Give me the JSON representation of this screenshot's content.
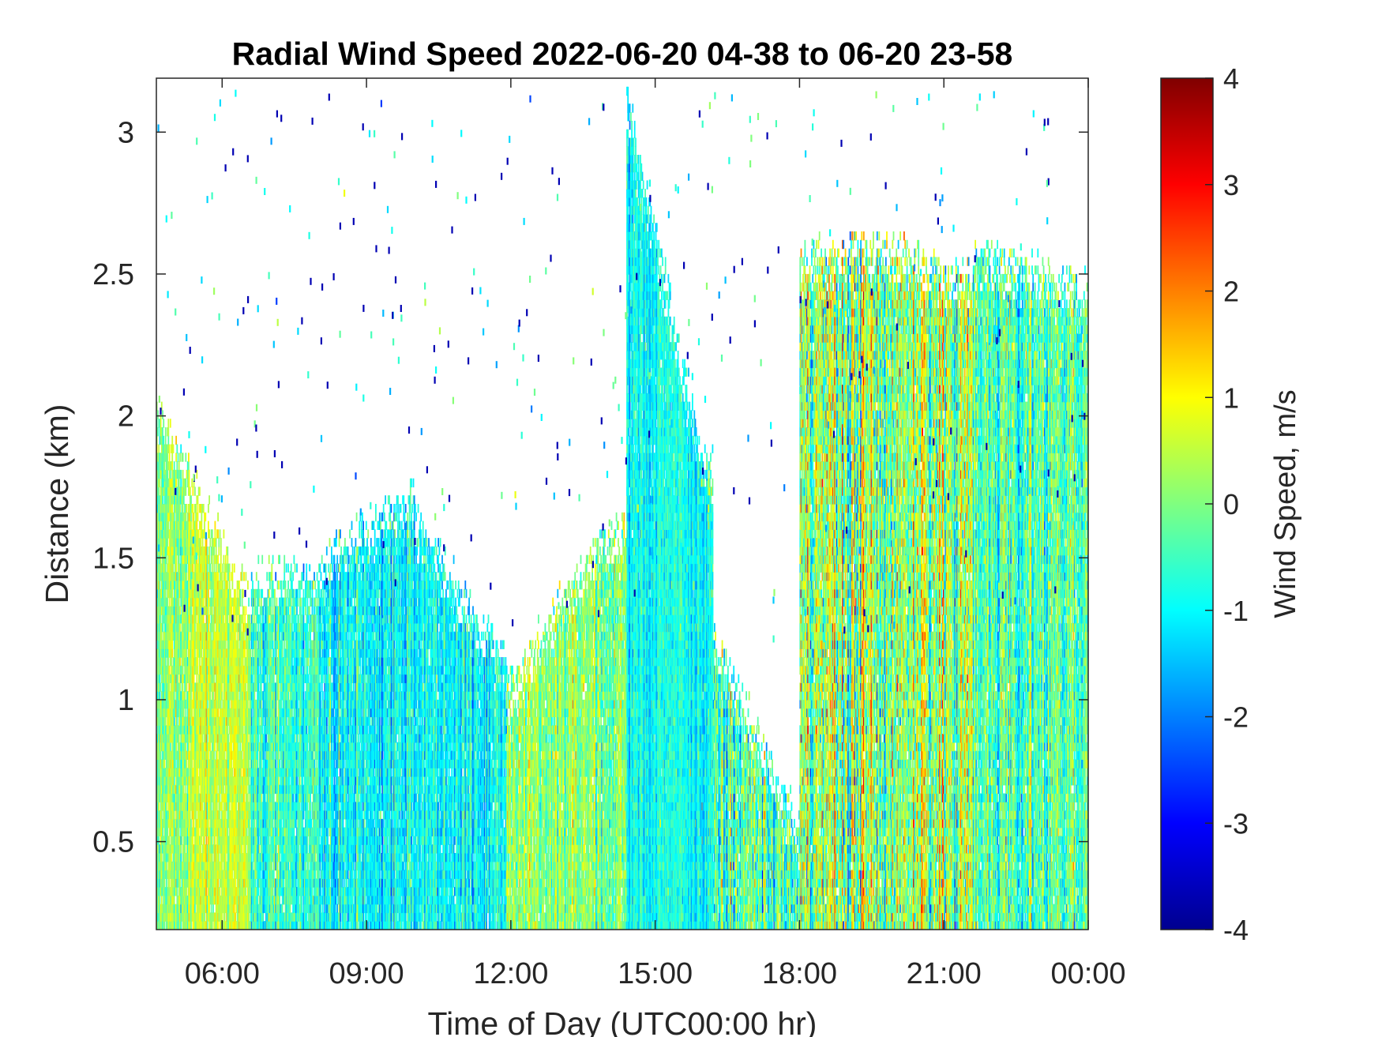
{
  "chart_data": {
    "type": "heatmap",
    "title": "Radial Wind Speed 2022-06-20 04-38 to 06-20 23-58",
    "xlabel": "Time of Day (UTC00:00 hr)",
    "ylabel": "Distance (km)",
    "colorbar_label": "Wind Speed, m/s",
    "xlim_hours": [
      4.633,
      24.0
    ],
    "ylim": [
      0.19,
      3.19
    ],
    "clim": [
      -4,
      4
    ],
    "colormap": "jet",
    "x_ticks": [
      {
        "value": 6,
        "label": "06:00"
      },
      {
        "value": 9,
        "label": "09:00"
      },
      {
        "value": 12,
        "label": "12:00"
      },
      {
        "value": 15,
        "label": "15:00"
      },
      {
        "value": 18,
        "label": "18:00"
      },
      {
        "value": 21,
        "label": "21:00"
      },
      {
        "value": 24,
        "label": "00:00"
      }
    ],
    "y_ticks": [
      {
        "value": 0.5,
        "label": "0.5"
      },
      {
        "value": 1,
        "label": "1"
      },
      {
        "value": 1.5,
        "label": "1.5"
      },
      {
        "value": 2,
        "label": "2"
      },
      {
        "value": 2.5,
        "label": "2.5"
      },
      {
        "value": 3,
        "label": "3"
      }
    ],
    "colorbar_ticks": [
      {
        "value": 4,
        "label": "4"
      },
      {
        "value": 3,
        "label": "3"
      },
      {
        "value": 2,
        "label": "2"
      },
      {
        "value": 1,
        "label": "1"
      },
      {
        "value": 0,
        "label": "0"
      },
      {
        "value": -1,
        "label": "-1"
      },
      {
        "value": -2,
        "label": "-2"
      },
      {
        "value": -3,
        "label": "-3"
      },
      {
        "value": -4,
        "label": "-4"
      }
    ],
    "grid": false,
    "colorbar_position": "right",
    "regimes": [
      {
        "x": [
          4.63,
          5.3
        ],
        "top_km": [
          2.1,
          1.85
        ],
        "mean": 0.1,
        "spread": 0.9,
        "max_sample_km": 1.6
      },
      {
        "x": [
          5.3,
          6.6
        ],
        "top_km": [
          1.85,
          1.4
        ],
        "mean": 0.6,
        "spread": 0.7,
        "max_sample_km": 1.5
      },
      {
        "x": [
          6.6,
          8.0
        ],
        "top_km": [
          1.5,
          1.5
        ],
        "mean": -0.6,
        "spread": 0.9,
        "max_sample_km": 1.5
      },
      {
        "x": [
          8.0,
          10.0
        ],
        "top_km": [
          1.55,
          1.8
        ],
        "mean": -1.0,
        "spread": 0.9,
        "max_sample_km": 1.7
      },
      {
        "x": [
          10.0,
          11.9
        ],
        "top_km": [
          1.7,
          1.2
        ],
        "mean": -1.0,
        "spread": 0.8,
        "max_sample_km": 1.4
      },
      {
        "x": [
          11.9,
          13.7
        ],
        "top_km": [
          1.1,
          1.6
        ],
        "mean": 0.2,
        "spread": 0.9,
        "max_sample_km": 1.3
      },
      {
        "x": [
          13.7,
          16.2
        ],
        "top_km": [
          1.6,
          1.9
        ],
        "mean": -0.2,
        "spread": 1.1,
        "max_sample_km": 1.4
      },
      {
        "x": [
          14.4,
          16.2
        ],
        "top_km": [
          3.19,
          1.75
        ],
        "mean": -0.9,
        "spread": 0.7,
        "max_sample_km": 2.6
      },
      {
        "x": [
          16.2,
          18.0
        ],
        "top_km": [
          1.3,
          0.6
        ],
        "mean": -0.3,
        "spread": 1.4,
        "max_sample_km": 0.9
      },
      {
        "x": [
          18.0,
          19.7
        ],
        "top_km": [
          2.6,
          2.7
        ],
        "mean": 0.2,
        "spread": 1.7,
        "max_sample_km": 2.0
      },
      {
        "x": [
          19.7,
          21.6
        ],
        "top_km": [
          2.65,
          2.55
        ],
        "mean": 0.1,
        "spread": 1.6,
        "max_sample_km": 2.0
      },
      {
        "x": [
          21.6,
          24.0
        ],
        "top_km": [
          2.65,
          2.5
        ],
        "mean": -0.4,
        "spread": 1.2,
        "max_sample_km": 2.2
      }
    ]
  }
}
